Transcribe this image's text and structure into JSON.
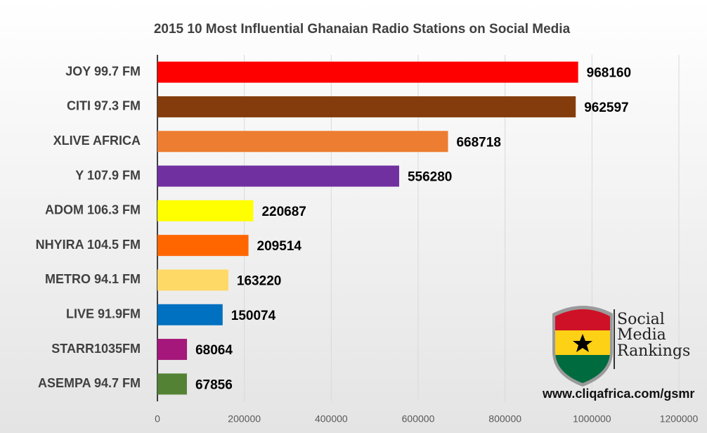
{
  "chart_data": {
    "type": "bar",
    "orientation": "horizontal",
    "title": "2015 10 Most Influential Ghanaian Radio Stations on Social Media",
    "categories": [
      "JOY 99.7 FM",
      "CITI 97.3 FM",
      "XLIVE AFRICA",
      "Y 107.9 FM",
      "ADOM 106.3 FM",
      "NHYIRA 104.5 FM",
      "METRO 94.1 FM",
      "LIVE 91.9FM",
      "STARR1035FM",
      "ASEMPA 94.7 FM"
    ],
    "values": [
      968160,
      962597,
      668718,
      556280,
      220687,
      209514,
      163220,
      150074,
      68064,
      67856
    ],
    "colors": [
      "#ff0000",
      "#843c0c",
      "#ed7d31",
      "#7030a0",
      "#ffff00",
      "#ff6600",
      "#ffd966",
      "#0070c0",
      "#a5177a",
      "#548235"
    ],
    "xlim": [
      0,
      1200000
    ],
    "xticks": [
      0,
      200000,
      400000,
      600000,
      800000,
      1000000,
      1200000
    ],
    "grid": true,
    "watermark": {
      "lines": [
        "Social",
        "Media",
        "Rankings"
      ],
      "url": "www.cliqafrica.com/gsmr"
    }
  }
}
